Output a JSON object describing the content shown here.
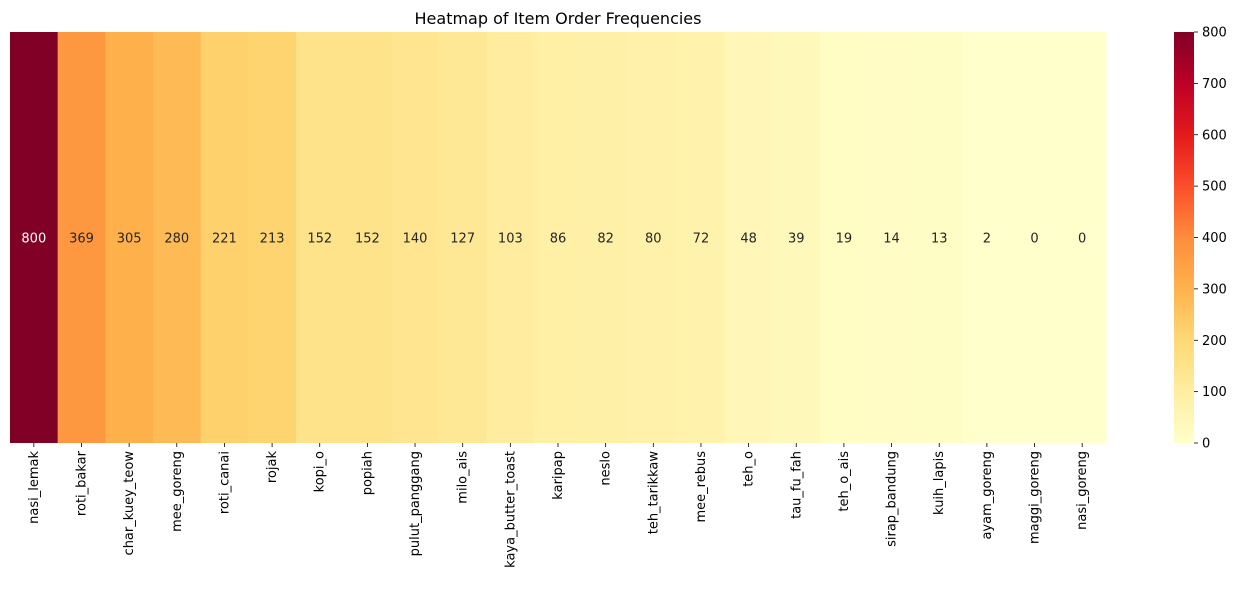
{
  "chart_data": {
    "type": "heatmap",
    "title": "Heatmap of Item Order Frequencies",
    "xlabel": "",
    "ylabel": "",
    "categories": [
      "nasi_lemak",
      "roti_bakar",
      "char_kuey_teow",
      "mee_goreng",
      "roti_canai",
      "rojak",
      "kopi_o",
      "popiah",
      "pulut_panggang",
      "milo_ais",
      "kaya_butter_toast",
      "karipap",
      "neslo",
      "teh_tarikkaw",
      "mee_rebus",
      "teh_o",
      "tau_fu_fah",
      "teh_o_ais",
      "sirap_bandung",
      "kuih_lapis",
      "ayam_goreng",
      "maggi_goreng",
      "nasi_goreng"
    ],
    "values": [
      800,
      369,
      305,
      280,
      221,
      213,
      152,
      152,
      140,
      127,
      103,
      86,
      82,
      80,
      72,
      48,
      39,
      19,
      14,
      13,
      2,
      0,
      0
    ],
    "colorbar": {
      "range": [
        0,
        800
      ],
      "ticks": [
        0,
        100,
        200,
        300,
        400,
        500,
        600,
        700,
        800
      ],
      "colormap": "YlOrRd"
    }
  }
}
